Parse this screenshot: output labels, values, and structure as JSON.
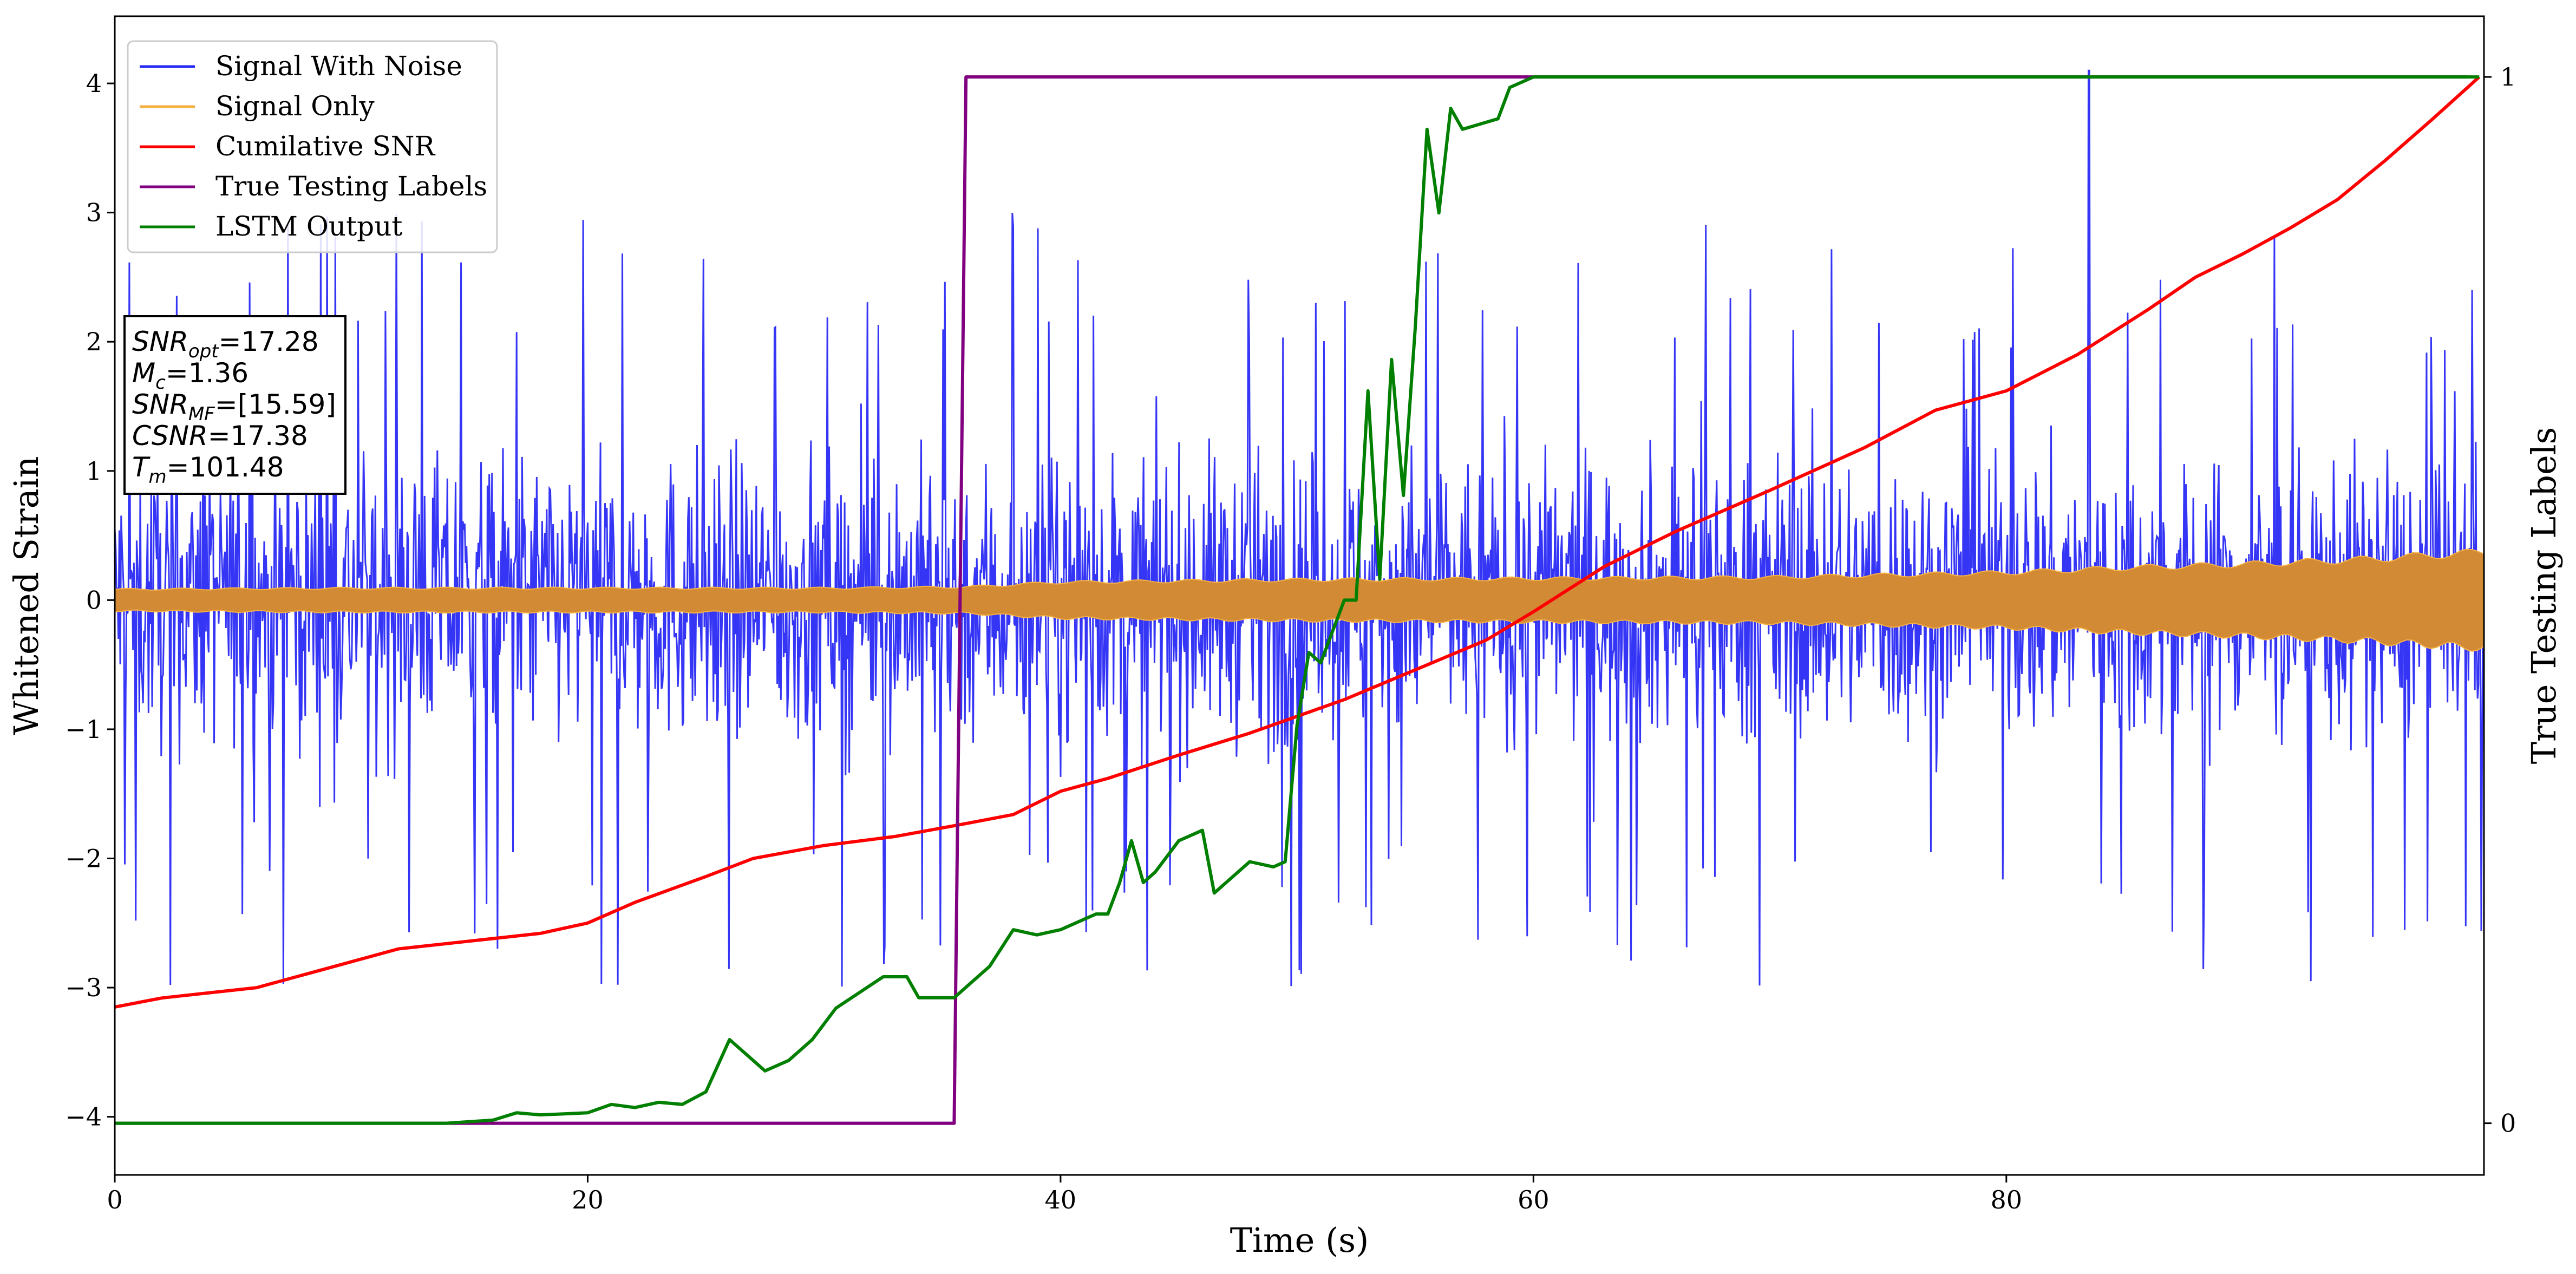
{
  "chart_data": {
    "type": "line",
    "xlabel": "Time (s)",
    "ylabel": "Whitened Strain",
    "y2label": "True Testing Labels",
    "xlim": [
      0,
      100.2
    ],
    "ylim": [
      -4.45,
      4.52
    ],
    "y2lim": [
      -0.05,
      1.05
    ],
    "x_ticks": [
      0,
      20,
      40,
      60,
      80
    ],
    "x_tick_labels": [
      "0",
      "20",
      "40",
      "60",
      "80"
    ],
    "y_ticks": [
      -4,
      -3,
      -2,
      -1,
      0,
      1,
      2,
      3,
      4
    ],
    "y_tick_labels": [
      "−4",
      "−3",
      "−2",
      "−1",
      "0",
      "1",
      "2",
      "3",
      "4"
    ],
    "y2_ticks": [
      0,
      1
    ],
    "y2_tick_labels": [
      "0",
      "1"
    ],
    "legend_position": "top-left",
    "grid": false,
    "series": [
      {
        "name": "Signal With Noise",
        "color": "#2a2af5",
        "axis": "left",
        "description_values": "noise band roughly -1.5..1.5 with spikes to about +/-3; occasional peaks to 4.1 near t=83.5",
        "envelope_typical": 1.5,
        "spike_max": 4.1,
        "spike_min": -3.4
      },
      {
        "name": "Signal Only",
        "color": "#f5b042",
        "fill_color": "#d38a35",
        "axis": "left",
        "envelope": {
          "x": [
            0,
            10,
            20,
            30,
            36,
            40,
            50,
            60,
            70,
            80,
            85,
            90,
            95,
            100
          ],
          "amp": [
            0.09,
            0.1,
            0.1,
            0.1,
            0.11,
            0.15,
            0.17,
            0.18,
            0.19,
            0.23,
            0.27,
            0.3,
            0.34,
            0.4
          ]
        }
      },
      {
        "name": "Cumilative SNR",
        "color": "#ff0000",
        "axis": "left",
        "x": [
          0,
          2,
          6,
          9,
          12,
          15,
          18,
          20,
          22,
          25,
          27,
          30,
          33,
          36,
          38,
          40,
          42,
          45,
          48,
          52,
          55,
          58,
          60,
          63,
          66,
          70,
          74,
          77,
          80,
          83,
          86,
          88,
          90,
          92,
          94,
          96,
          98,
          100
        ],
        "y": [
          -3.15,
          -3.08,
          -3.0,
          -2.85,
          -2.7,
          -2.64,
          -2.58,
          -2.5,
          -2.34,
          -2.14,
          -2.0,
          -1.9,
          -1.83,
          -1.73,
          -1.66,
          -1.48,
          -1.38,
          -1.2,
          -1.03,
          -0.77,
          -0.54,
          -0.31,
          -0.09,
          0.26,
          0.53,
          0.85,
          1.18,
          1.47,
          1.62,
          1.9,
          2.25,
          2.5,
          2.68,
          2.88,
          3.1,
          3.4,
          3.72,
          4.05
        ]
      },
      {
        "name": "True Testing Labels",
        "color": "#800080",
        "axis": "right",
        "x": [
          0,
          35.5,
          36.0,
          99.5
        ],
        "y": [
          0,
          0,
          1,
          1
        ]
      },
      {
        "name": "LSTM Output",
        "color": "#007f00",
        "axis": "right",
        "x": [
          0,
          14,
          16,
          17,
          18,
          19,
          20,
          21,
          22,
          23,
          24,
          25,
          26,
          26.5,
          27.5,
          28.5,
          29.5,
          30.5,
          31.5,
          32.5,
          33.5,
          34,
          34.5,
          35.5,
          36,
          37,
          38,
          39,
          40,
          41,
          41.5,
          42,
          42.5,
          43,
          43.5,
          44,
          45,
          46,
          46.5,
          47,
          48,
          49,
          49.5,
          50,
          50.5,
          51,
          52,
          52.5,
          53,
          53.5,
          54,
          54.5,
          55,
          55.5,
          56,
          56.5,
          57,
          58.5,
          59,
          60,
          62,
          65,
          100
        ],
        "y": [
          0,
          0,
          0.003,
          0.01,
          0.008,
          0.009,
          0.01,
          0.018,
          0.015,
          0.02,
          0.018,
          0.03,
          0.08,
          0.07,
          0.05,
          0.06,
          0.08,
          0.11,
          0.125,
          0.14,
          0.14,
          0.12,
          0.12,
          0.12,
          0.13,
          0.15,
          0.185,
          0.18,
          0.185,
          0.195,
          0.2,
          0.2,
          0.23,
          0.27,
          0.23,
          0.24,
          0.27,
          0.28,
          0.22,
          0.23,
          0.25,
          0.245,
          0.25,
          0.38,
          0.45,
          0.44,
          0.5,
          0.5,
          0.7,
          0.52,
          0.73,
          0.6,
          0.76,
          0.95,
          0.87,
          0.97,
          0.95,
          0.96,
          0.99,
          1,
          1,
          1,
          1
        ]
      }
    ],
    "annotation_lines": [
      {
        "id": "snr_opt",
        "label": "SNR",
        "sub": "opt",
        "value": "=17.28"
      },
      {
        "id": "mc",
        "label": "M",
        "sub": "c",
        "value": "=1.36"
      },
      {
        "id": "snr_mf",
        "label": "SNR",
        "sub": "MF",
        "value": "=[15.59]"
      },
      {
        "id": "csnr",
        "label": "CSNR",
        "sub": "",
        "value": "=17.38"
      },
      {
        "id": "tm",
        "label": "T",
        "sub": "m",
        "value": "=101.48"
      }
    ]
  }
}
